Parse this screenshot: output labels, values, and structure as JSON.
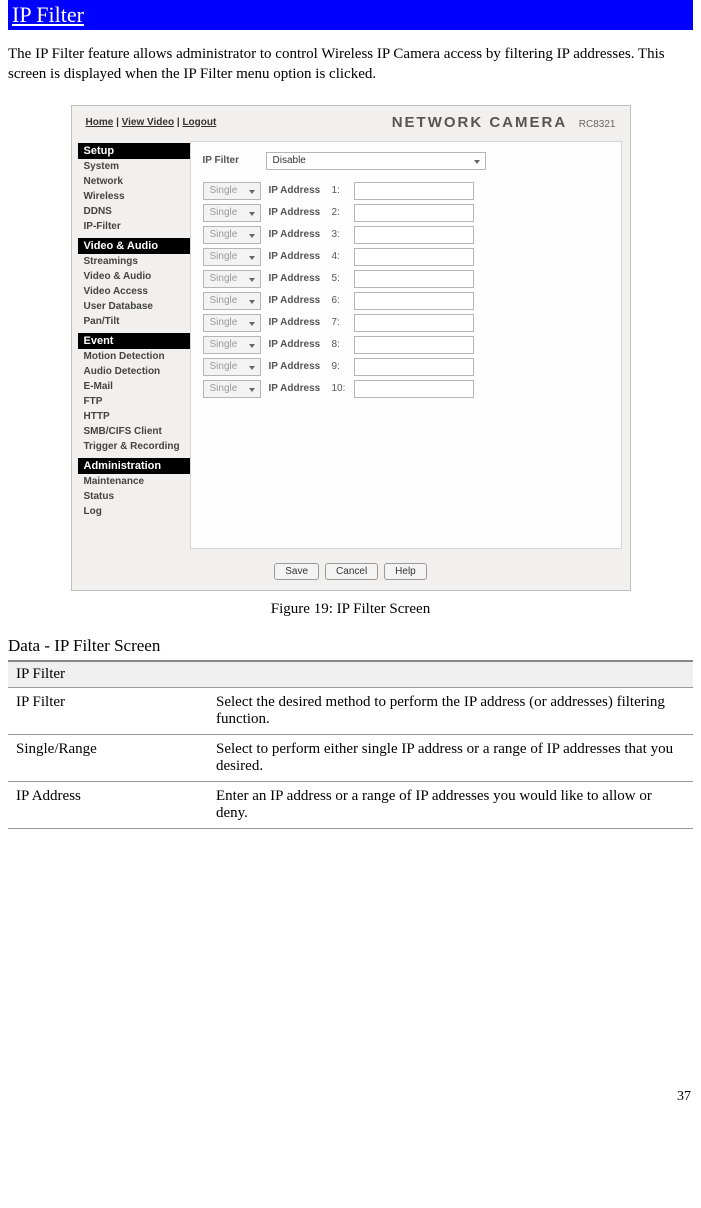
{
  "title_bar": "IP Filter",
  "intro": "The IP Filter feature allows administrator to control Wireless IP Camera access by filtering IP addresses. This screen is displayed when the IP Filter menu option is clicked.",
  "shot": {
    "top_links": {
      "home": "Home",
      "view": "View Video",
      "logout": "Logout"
    },
    "brand": "NETWORK CAMERA",
    "model": "RC8321",
    "sidebar": {
      "groups": [
        {
          "header": "Setup",
          "items": [
            "System",
            "Network",
            "Wireless",
            "DDNS",
            "IP-Filter"
          ]
        },
        {
          "header": "Video & Audio",
          "items": [
            "Streamings",
            "Video & Audio",
            "Video Access",
            "User Database",
            "Pan/Tilt"
          ]
        },
        {
          "header": "Event",
          "items": [
            "Motion Detection",
            "Audio Detection",
            "E-Mail",
            "FTP",
            "HTTP",
            "SMB/CIFS Client",
            "Trigger & Recording"
          ]
        },
        {
          "header": "Administration",
          "items": [
            "Maintenance",
            "Status",
            "Log"
          ]
        }
      ]
    },
    "content": {
      "ipfilter_label": "IP Filter",
      "ipfilter_value": "Disable",
      "row_select": "Single",
      "row_label": "IP Address",
      "count": 10
    },
    "buttons": {
      "save": "Save",
      "cancel": "Cancel",
      "help": "Help"
    }
  },
  "caption": "Figure 19: IP Filter Screen",
  "section_heading": "Data - IP Filter Screen",
  "table": {
    "header": "IP Filter",
    "rows": [
      {
        "k": "IP Filter",
        "v": "Select the desired method to perform the IP address (or addresses) filtering function."
      },
      {
        "k": "Single/Range",
        "v": "Select to perform either single IP address or a range of IP addresses that you desired."
      },
      {
        "k": "IP Address",
        "v": "Enter an IP address or a range of IP addresses you would like to allow or deny."
      }
    ]
  },
  "page_number": "37",
  "colors": {
    "title_bg": "#0000ff",
    "title_fg": "#ffffff",
    "panel_bg": "#f1f0ee",
    "sidebar_header_bg": "#000000",
    "sidebar_header_fg": "#ffffff",
    "table_header_bg": "#efefef"
  }
}
